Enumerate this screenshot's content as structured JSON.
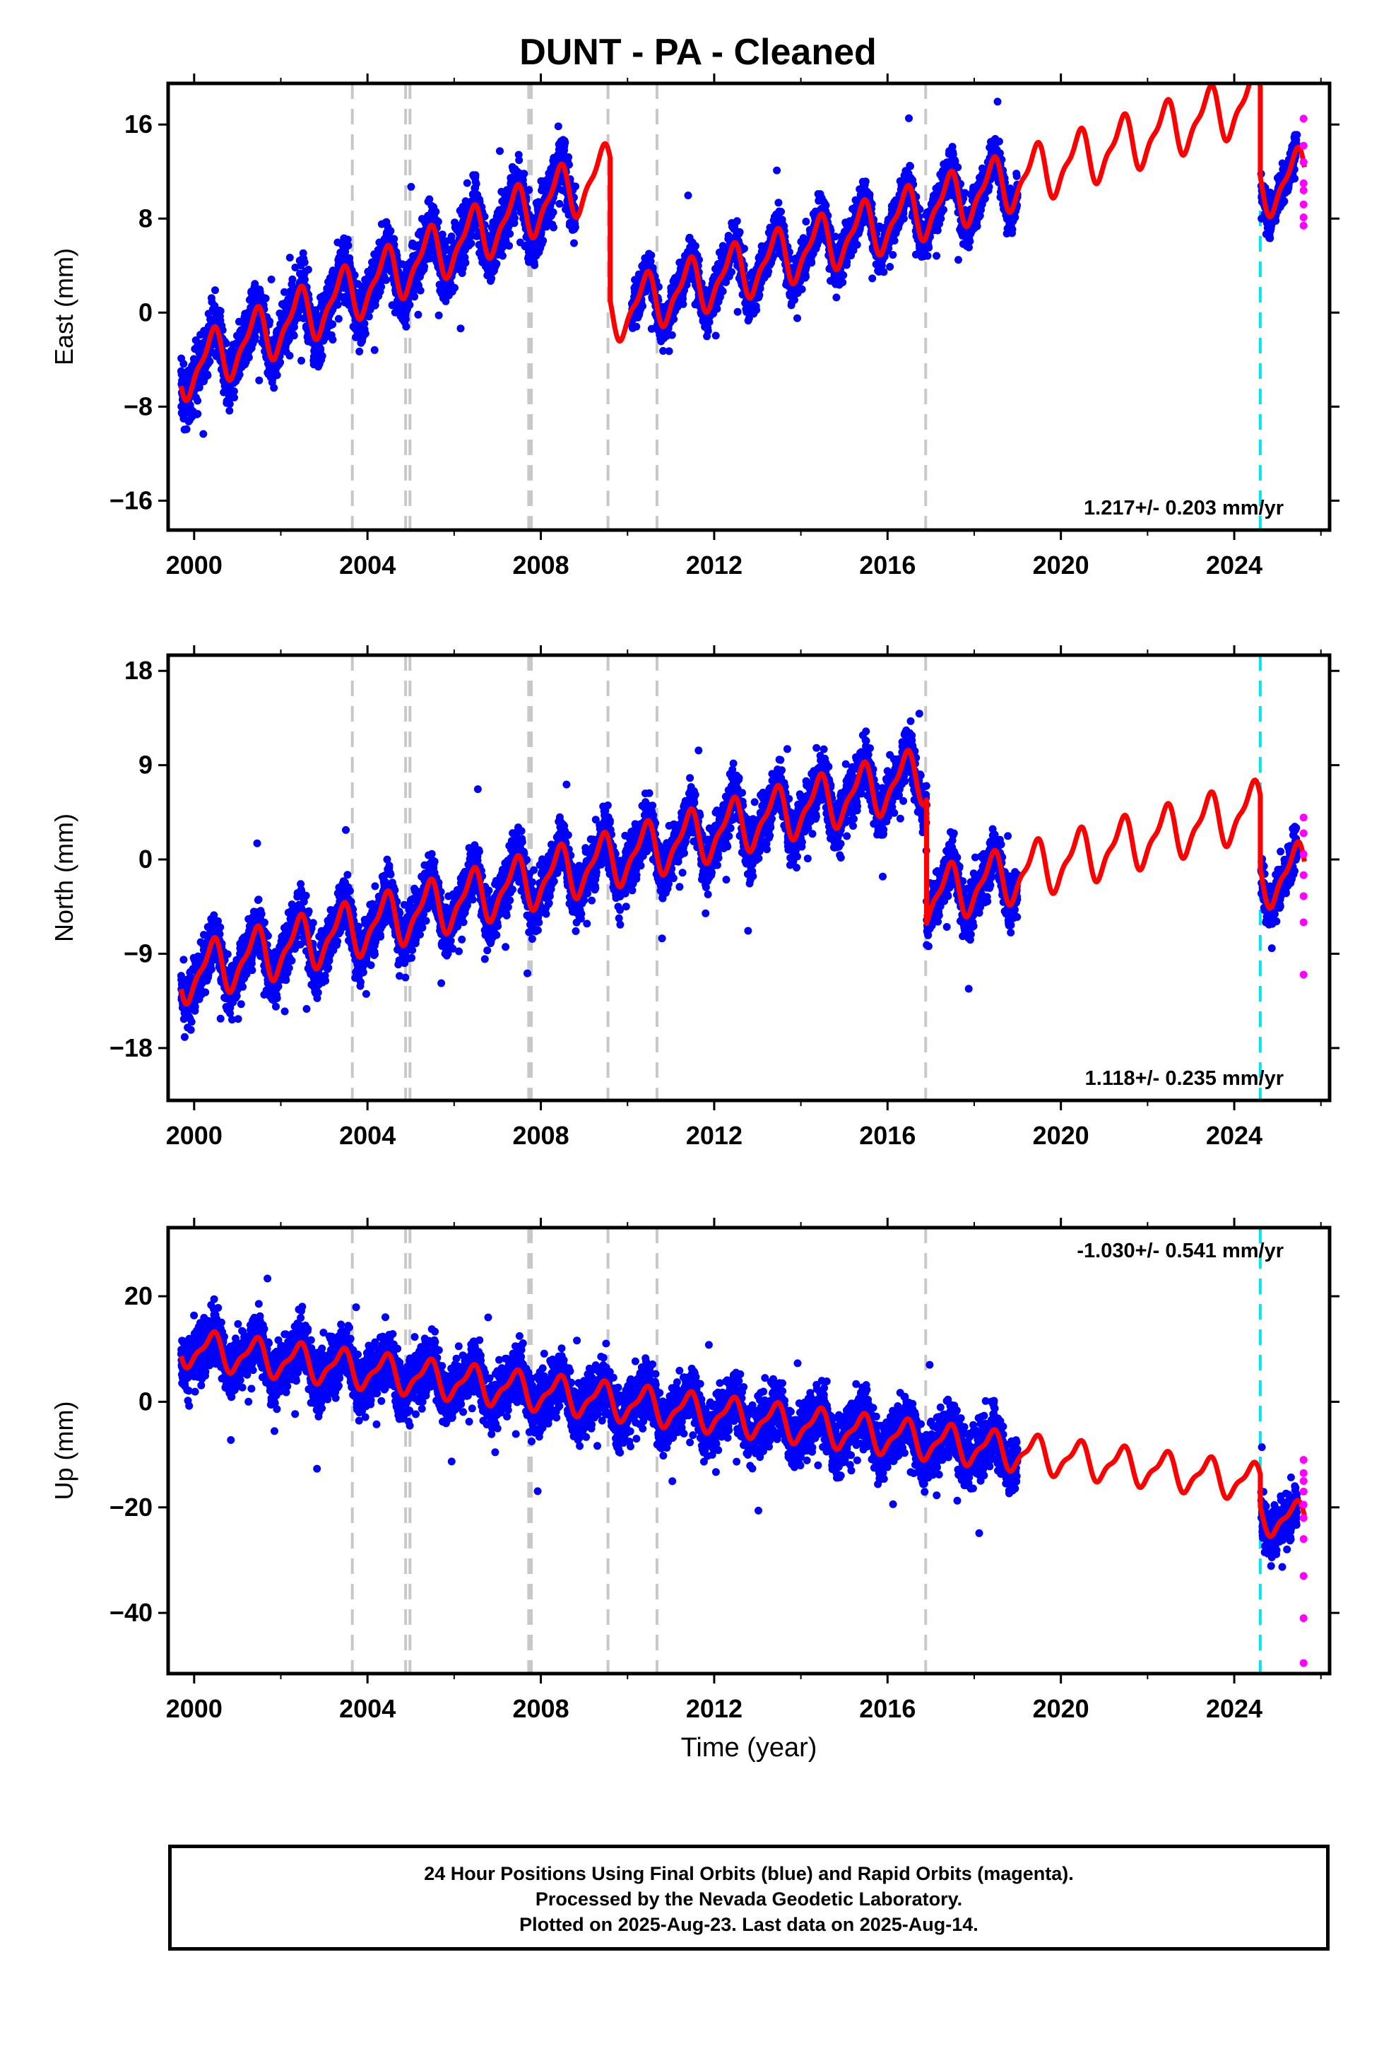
{
  "title": "DUNT  - PA - Cleaned",
  "x_axis_label": "Time (year)",
  "footer": {
    "line1": "24 Hour Positions Using Final Orbits (blue) and Rapid Orbits (magenta).",
    "line2": "Processed by the Nevada Geodetic Laboratory.",
    "line3": "Plotted on 2025-Aug-23. Last data on 2025-Aug-14."
  },
  "colors": {
    "final_orbits": "#0000ff",
    "rapid_orbits": "#ff00ff",
    "model_fit": "#ff0000",
    "equipment_change": "#c8c8c8",
    "recent_event": "#00e5ee"
  },
  "chart_data": [
    {
      "type": "scatter",
      "component": "east",
      "ylabel": "East (mm)",
      "xlim": [
        1999.4,
        2026.2
      ],
      "ylim": [
        -18.5,
        19.5
      ],
      "xticks": [
        2000,
        2004,
        2008,
        2012,
        2016,
        2020,
        2024
      ],
      "yticks": [
        -16,
        -8,
        0,
        8,
        16
      ],
      "rate_label": "1.217+/- 0.203 mm/yr",
      "rate_position": "bottom-right",
      "vertical_lines_gray": [
        2003.65,
        2004.88,
        2004.98,
        2007.72,
        2007.78,
        2009.55,
        2010.68,
        2016.88
      ],
      "vertical_line_cyan": 2024.6,
      "segments": [
        {
          "start": 1999.7,
          "end": 2009.6,
          "data_start": 1999.7,
          "data_end": 2008.8,
          "offset": -4.6,
          "rate": 1.73,
          "spread": 2.4
        },
        {
          "start": 2009.6,
          "end": 2024.6,
          "data_start": 2010.1,
          "data_end": 2019.0,
          "offset": -11.8,
          "rate": 1.217,
          "spread": 1.8
        },
        {
          "start": 2024.6,
          "end": 2025.62,
          "data_start": 2024.62,
          "data_end": 2025.45,
          "offset": -19.5,
          "rate": 1.217,
          "spread": 1.5
        }
      ],
      "seasonal_amplitude": 2.2,
      "rapid_values": [
        16.5,
        14.2,
        12.8,
        11.0,
        10.4,
        9.2,
        8.1,
        7.4
      ]
    },
    {
      "type": "scatter",
      "component": "north",
      "ylabel": "North (mm)",
      "xlim": [
        1999.4,
        2026.2
      ],
      "ylim": [
        -23.0,
        19.5
      ],
      "xticks": [
        2000,
        2004,
        2008,
        2012,
        2016,
        2020,
        2024
      ],
      "yticks": [
        -18,
        -9,
        0,
        9,
        18
      ],
      "rate_label": "1.118+/- 0.235 mm/yr",
      "rate_position": "bottom-right",
      "vertical_lines_gray": [
        2003.65,
        2004.88,
        2004.98,
        2007.72,
        2007.78,
        2009.55,
        2010.68,
        2016.88
      ],
      "vertical_line_cyan": 2024.6,
      "segments": [
        {
          "start": 1999.7,
          "end": 2016.9,
          "data_start": 1999.7,
          "data_end": 2016.9,
          "offset": -10.8,
          "rate": 1.118,
          "spread": 2.5
        },
        {
          "start": 2016.9,
          "end": 2024.6,
          "data_start": 2016.9,
          "data_end": 2019.0,
          "offset": -22.6,
          "rate": 1.118,
          "spread": 2.3
        },
        {
          "start": 2024.6,
          "end": 2025.62,
          "data_start": 2024.62,
          "data_end": 2025.45,
          "offset": -29.6,
          "rate": 1.118,
          "spread": 2.0
        }
      ],
      "seasonal_amplitude": 2.4,
      "rapid_values": [
        4.0,
        2.5,
        0.5,
        -1.5,
        -3.5,
        -6.0,
        -11.0
      ]
    },
    {
      "type": "scatter",
      "component": "up",
      "ylabel": "Up (mm)",
      "xlim": [
        1999.4,
        2026.2
      ],
      "ylim": [
        -51.5,
        33.0
      ],
      "xticks": [
        2000,
        2004,
        2008,
        2012,
        2016,
        2020,
        2024
      ],
      "yticks": [
        -40,
        -20,
        0,
        20
      ],
      "rate_label": "-1.030+/- 0.541 mm/yr",
      "rate_position": "top-right",
      "vertical_lines_gray": [
        2003.65,
        2004.88,
        2004.98,
        2007.72,
        2007.78,
        2009.55,
        2010.68,
        2016.88
      ],
      "vertical_line_cyan": 2024.6,
      "segments": [
        {
          "start": 1999.7,
          "end": 2024.6,
          "data_start": 1999.7,
          "data_end": 2019.0,
          "offset": 10.0,
          "rate": -1.03,
          "spread": 5.2
        },
        {
          "start": 2024.6,
          "end": 2025.62,
          "data_start": 2024.62,
          "data_end": 2025.45,
          "offset": 3.8,
          "rate": -1.03,
          "spread": 4.5
        }
      ],
      "seasonal_amplitude": 3.2,
      "rapid_values": [
        -11.0,
        -13.5,
        -15.0,
        -17.0,
        -19.5,
        -22.0,
        -26.0,
        -33.0,
        -41.0,
        -49.5
      ]
    }
  ]
}
